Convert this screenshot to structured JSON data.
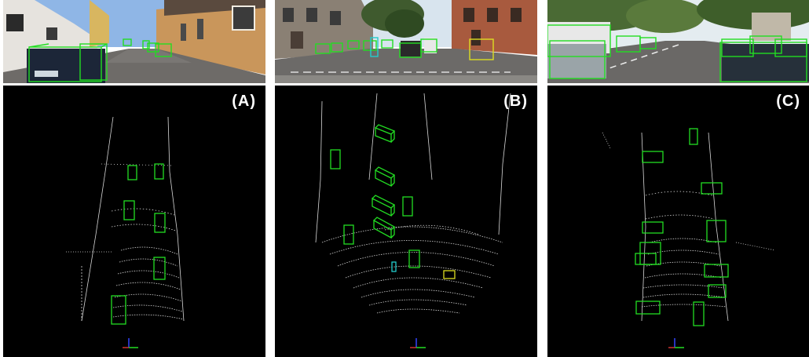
{
  "panels": [
    {
      "label": "(A)",
      "scene": "residential-street",
      "box_colors": [
        "#22dd22"
      ]
    },
    {
      "label": "(B)",
      "scene": "urban-intersection",
      "box_colors": [
        "#22dd22",
        "#22cccc",
        "#dddd22"
      ]
    },
    {
      "label": "(C)",
      "scene": "tree-lined-street",
      "box_colors": [
        "#22dd22"
      ]
    }
  ],
  "colors": {
    "detection_car": "#22dd22",
    "detection_pedestrian": "#22cccc",
    "detection_cyclist": "#dddd22",
    "lidar_points": "#ffffff",
    "bev_background": "#000000"
  },
  "icons": [
    "coordinate-axes-icon"
  ]
}
